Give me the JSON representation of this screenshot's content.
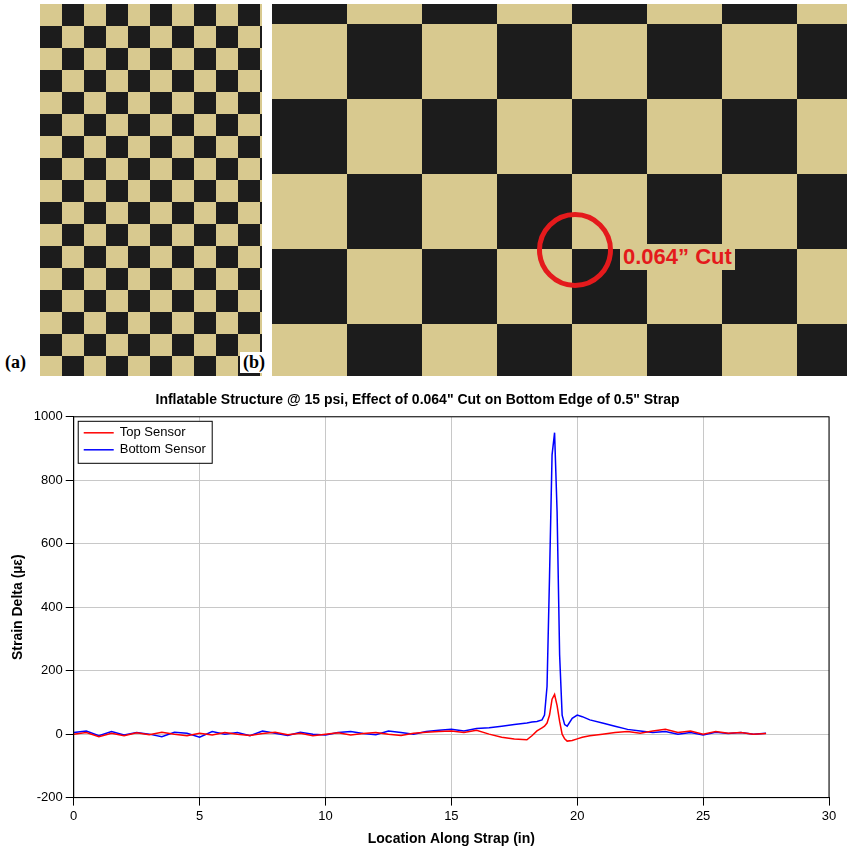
{
  "panels": [
    {
      "label": "(a)"
    },
    {
      "label": "(b)",
      "annotation": "0.064” Cut"
    }
  ],
  "chart_data": {
    "type": "line",
    "title": "Inflatable Structure @ 15 psi, Effect of 0.064\" Cut on Bottom Edge of 0.5\" Strap",
    "x_label": "Location Along Strap (in)",
    "y_label": "Strain Delta (µε)",
    "x": [
      0,
      0.5,
      1,
      1.5,
      2,
      2.5,
      3,
      3.5,
      4,
      4.5,
      5,
      5.5,
      6,
      6.5,
      7,
      7.5,
      8,
      8.5,
      9,
      9.5,
      10,
      10.5,
      11,
      11.5,
      12,
      12.5,
      13,
      13.5,
      14,
      14.5,
      15,
      15.5,
      16,
      16.5,
      17,
      17.5,
      18,
      18.2,
      18.4,
      18.6,
      18.7,
      18.8,
      18.9,
      19.0,
      19.1,
      19.2,
      19.3,
      19.4,
      19.5,
      19.6,
      19.8,
      20.0,
      20.2,
      20.5,
      21,
      21.5,
      22,
      22.5,
      23,
      23.5,
      24,
      24.5,
      25,
      25.5,
      26,
      26.5,
      27,
      27.5
    ],
    "series": [
      {
        "name": "Top Sensor",
        "color": "#ff0000",
        "values": [
          0,
          5,
          -8,
          3,
          -5,
          4,
          -2,
          6,
          0,
          -5,
          3,
          -3,
          5,
          0,
          -4,
          2,
          6,
          -2,
          3,
          -5,
          0,
          4,
          -3,
          2,
          5,
          0,
          -4,
          3,
          6,
          8,
          10,
          5,
          12,
          0,
          -10,
          -15,
          -18,
          -5,
          10,
          20,
          25,
          35,
          60,
          110,
          125,
          90,
          40,
          0,
          -15,
          -22,
          -20,
          -15,
          -10,
          -5,
          0,
          5,
          8,
          3,
          10,
          15,
          5,
          10,
          0,
          8,
          3,
          5,
          0,
          2
        ]
      },
      {
        "name": "Bottom Sensor",
        "color": "#0000ff",
        "values": [
          5,
          10,
          -5,
          8,
          -3,
          5,
          0,
          -8,
          6,
          3,
          -10,
          8,
          0,
          5,
          -5,
          10,
          3,
          -4,
          6,
          0,
          -3,
          5,
          8,
          2,
          -2,
          10,
          5,
          0,
          8,
          12,
          15,
          10,
          18,
          20,
          25,
          30,
          35,
          38,
          40,
          45,
          60,
          150,
          500,
          880,
          950,
          700,
          250,
          60,
          30,
          25,
          50,
          60,
          55,
          45,
          35,
          25,
          15,
          10,
          5,
          8,
          0,
          5,
          -3,
          6,
          2,
          5,
          0,
          3
        ]
      }
    ],
    "xlim": [
      0,
      30
    ],
    "xticks": [
      0,
      5,
      10,
      15,
      20,
      25,
      30
    ],
    "ylim": [
      -200,
      1000
    ],
    "yticks": [
      -200,
      0,
      200,
      400,
      600,
      800,
      1000
    ],
    "grid": true,
    "legend": "upper left"
  }
}
